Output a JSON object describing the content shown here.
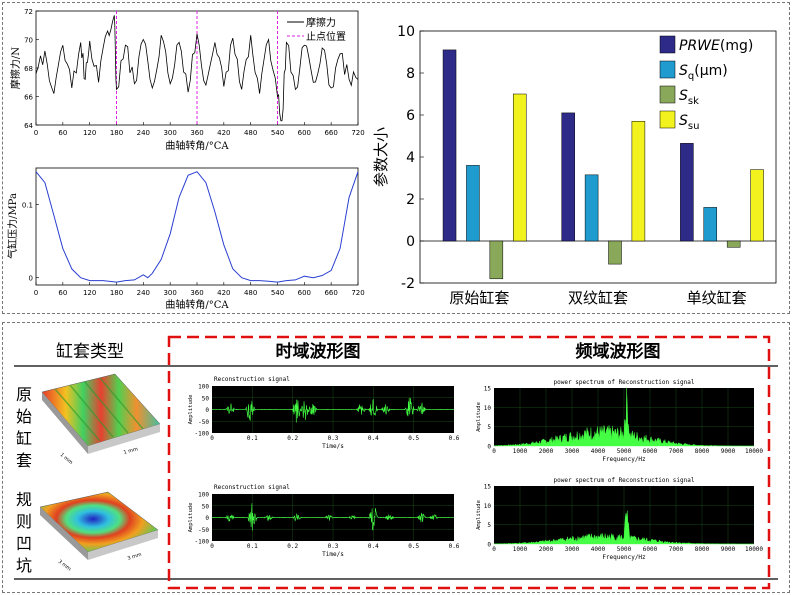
{
  "friction_chart": {
    "ylabel": "摩擦力/N",
    "xlabel": "曲轴转角/°CA",
    "legend": [
      "摩擦力",
      "止点位置"
    ],
    "yticks": [
      "64",
      "66",
      "68",
      "70",
      "72"
    ],
    "xticks": [
      "0",
      "60",
      "120",
      "180",
      "240",
      "300",
      "360",
      "420",
      "480",
      "540",
      "600",
      "660",
      "720"
    ]
  },
  "pressure_chart": {
    "ylabel": "气缸压力/MPa",
    "xlabel": "曲轴转角/°CA",
    "yticks": [
      "0",
      "0.1"
    ],
    "xticks": [
      "0",
      "60",
      "120",
      "180",
      "240",
      "300",
      "360",
      "420",
      "480",
      "540",
      "600",
      "660",
      "720"
    ]
  },
  "chart_data": [
    {
      "type": "line",
      "title": "",
      "xlabel": "曲轴转角/°CA",
      "ylabel": "摩擦力/N",
      "xlim": [
        0,
        720
      ],
      "ylim": [
        64,
        72
      ],
      "series": [
        {
          "name": "摩擦力",
          "x": [
            0,
            20,
            40,
            60,
            80,
            100,
            110,
            120,
            140,
            160,
            175,
            180,
            200,
            220,
            240,
            260,
            280,
            300,
            320,
            340,
            360,
            380,
            400,
            420,
            440,
            460,
            480,
            500,
            520,
            540,
            550,
            560,
            580,
            600,
            620,
            640,
            660,
            680,
            700,
            720
          ],
          "values": [
            67.6,
            69.2,
            66.2,
            69.6,
            66.6,
            69.8,
            67.2,
            69.9,
            67.0,
            70.6,
            71.7,
            66.5,
            69.6,
            66.9,
            70.0,
            66.6,
            70.3,
            66.9,
            69.8,
            66.3,
            70.4,
            66.8,
            69.8,
            66.7,
            70.1,
            66.5,
            70.3,
            66.2,
            70.0,
            66.0,
            64.3,
            69.8,
            66.5,
            69.6,
            67.0,
            69.4,
            66.6,
            69.0,
            67.2,
            67.2
          ]
        },
        {
          "name": "止点位置",
          "x": [
            180,
            360,
            540
          ],
          "values": [
            null,
            null,
            null
          ]
        }
      ],
      "grid": false,
      "legend": "top-right"
    },
    {
      "type": "line",
      "title": "",
      "xlabel": "曲轴转角/°CA",
      "ylabel": "气缸压力/MPa",
      "xlim": [
        0,
        720
      ],
      "ylim": [
        -0.01,
        0.15
      ],
      "series": [
        {
          "x": [
            0,
            20,
            40,
            60,
            80,
            100,
            120,
            150,
            180,
            200,
            220,
            240,
            250,
            260,
            280,
            300,
            320,
            340,
            360,
            380,
            400,
            420,
            440,
            460,
            480,
            500,
            520,
            540,
            560,
            580,
            600,
            620,
            640,
            660,
            680,
            700,
            720
          ],
          "values": [
            0.145,
            0.13,
            0.085,
            0.04,
            0.012,
            0.0,
            -0.004,
            -0.004,
            -0.006,
            -0.004,
            -0.003,
            0.004,
            0.0,
            0.006,
            0.025,
            0.06,
            0.11,
            0.14,
            0.145,
            0.13,
            0.09,
            0.045,
            0.012,
            0.0,
            -0.004,
            -0.004,
            -0.005,
            -0.006,
            -0.004,
            -0.003,
            0.002,
            0.0,
            0.003,
            0.01,
            0.04,
            0.11,
            0.145
          ]
        }
      ],
      "grid": false
    },
    {
      "type": "bar",
      "title": "",
      "xlabel": "",
      "ylabel": "参数大小",
      "ylim": [
        -2,
        10
      ],
      "categories": [
        "原始缸套",
        "双纹缸套",
        "单纹缸套"
      ],
      "series": [
        {
          "name": "PRWE(mg)",
          "values": [
            9.1,
            6.1,
            4.65
          ]
        },
        {
          "name": "Sq(μm)",
          "values": [
            3.6,
            3.15,
            1.6
          ]
        },
        {
          "name": "Ssk",
          "values": [
            -1.8,
            -1.1,
            -0.3
          ]
        },
        {
          "name": "Ssu",
          "values": [
            7.0,
            5.7,
            3.4
          ]
        }
      ],
      "legend": "top-right"
    }
  ],
  "bar_chart": {
    "ylabel": "参数大小",
    "yticks": [
      "-2",
      "0",
      "2",
      "4",
      "6",
      "8",
      "10"
    ],
    "categories": [
      "原始缸套",
      "双纹缸套",
      "单纹缸套"
    ],
    "legend": [
      {
        "main": "PRWE",
        "sub": "",
        "unit": "(mg)",
        "color": "#2e2a88"
      },
      {
        "main": "S",
        "sub": "q",
        "unit": "(μm)",
        "color": "#1f9bd0"
      },
      {
        "main": "S",
        "sub": "sk",
        "unit": "",
        "color": "#8aa85a"
      },
      {
        "main": "S",
        "sub": "su",
        "unit": "",
        "color": "#f2f21e"
      }
    ]
  },
  "table": {
    "col1_header": "缸套类型",
    "col2_header": "时域波形图",
    "col3_header": "频域波形图",
    "row1_label": [
      "原",
      "始",
      "缸",
      "套"
    ],
    "row2_label": [
      "规",
      "则",
      "凹",
      "坑"
    ],
    "surface1_axis1": "1 mm",
    "surface1_axis2": "1 mm",
    "surface2_axis1": "3 mm",
    "surface2_axis2": "3 mm"
  },
  "time_plot": {
    "title": "Reconstruction signal",
    "ylabel": "Amplitude",
    "xlabel": "Time/s",
    "yticks": [
      "100",
      "50",
      "0",
      "-50",
      "-100"
    ],
    "xticks": [
      "0",
      "0.1",
      "0.2",
      "0.3",
      "0.4",
      "0.5",
      "0.6"
    ]
  },
  "freq_plot": {
    "title": "power spectrum of Reconstruction signal",
    "ylabel": "Amplitude",
    "xlabel": "Frequency/Hz",
    "yticks_top": [
      "15",
      "10",
      "5",
      "0"
    ],
    "yticks_bottom": [
      "15",
      "10",
      "5",
      "0"
    ],
    "xticks": [
      "0",
      "1000",
      "2000",
      "3000",
      "4000",
      "5000",
      "6000",
      "7000",
      "8000",
      "9000",
      "10000"
    ]
  },
  "colors": {
    "friction_line": "#000000",
    "tdc_line": "#e020e0",
    "pressure_line": "#2a3fd0",
    "signal": "#44ff44",
    "plot_bg": "#000000",
    "red_box": "#e01010"
  }
}
